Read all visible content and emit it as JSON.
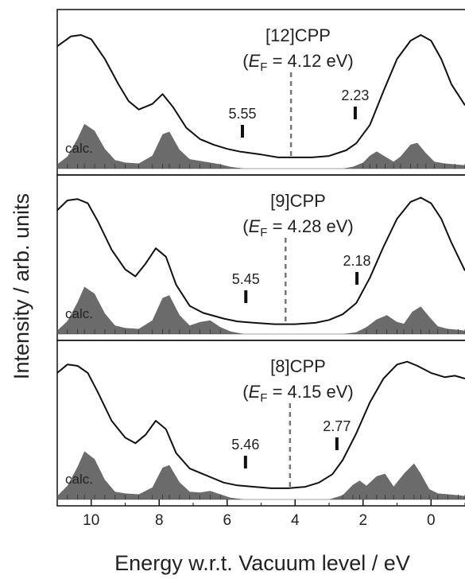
{
  "chart_data": {
    "type": "line",
    "xlabel": "Energy w.r.t. Vacuum level / eV",
    "ylabel": "Intensity / arb. units",
    "xlim": [
      11,
      -1
    ],
    "ylim": [
      0,
      1
    ],
    "x_ticks": [
      10,
      8,
      6,
      4,
      2,
      0
    ],
    "x_tick_labels": [
      "10",
      "8",
      "6",
      "4",
      "2",
      "0"
    ],
    "colors": {
      "measured": "#111111",
      "calc_fill": "#6b6b6b",
      "fermi": "#777777",
      "stick": "#333333"
    },
    "panels": [
      {
        "title": "[12]CPP",
        "ef_prefix": "(",
        "ef_symbol": "E",
        "ef_sub": "F",
        "ef_value": " = 4.12 eV)",
        "fermi_level": 4.12,
        "calc_label": "calc.",
        "markers": [
          {
            "x": 5.55,
            "label": "5.55"
          },
          {
            "x": 2.23,
            "label": "2.23"
          }
        ],
        "series": [
          {
            "kind": "measured",
            "x": [
              11,
              10.6,
              10.3,
              10,
              9.6,
              9.2,
              8.9,
              8.6,
              8.2,
              7.9,
              7.6,
              7.2,
              6.8,
              6.4,
              6.0,
              5.6,
              5.0,
              4.5,
              4.0,
              3.5,
              3.0,
              2.5,
              2.2,
              1.8,
              1.4,
              1.0,
              0.6,
              0.3,
              0.0,
              -0.3,
              -0.6,
              -1
            ],
            "y": [
              0.87,
              0.94,
              0.95,
              0.92,
              0.78,
              0.6,
              0.48,
              0.42,
              0.46,
              0.53,
              0.44,
              0.29,
              0.21,
              0.17,
              0.14,
              0.12,
              0.1,
              0.08,
              0.08,
              0.08,
              0.09,
              0.13,
              0.18,
              0.31,
              0.55,
              0.78,
              0.91,
              0.95,
              0.91,
              0.78,
              0.6,
              0.45
            ]
          },
          {
            "kind": "calc",
            "x": [
              11,
              10.7,
              10.4,
              10.2,
              9.9,
              9.6,
              9.3,
              9.0,
              8.6,
              8.2,
              7.9,
              7.7,
              7.4,
              7.1,
              6.8,
              6.5,
              6.2,
              5.9,
              5.5,
              2.6,
              2.3,
              2.0,
              1.8,
              1.6,
              1.35,
              1.1,
              0.9,
              0.6,
              0.4,
              0.15,
              -0.1,
              -0.4,
              -0.7,
              -1
            ],
            "y": [
              0.05,
              0.14,
              0.35,
              0.52,
              0.44,
              0.23,
              0.1,
              0.07,
              0.06,
              0.15,
              0.4,
              0.43,
              0.22,
              0.11,
              0.09,
              0.07,
              0.05,
              0.02,
              0,
              0,
              0.02,
              0.07,
              0.15,
              0.2,
              0.14,
              0.08,
              0.14,
              0.28,
              0.3,
              0.18,
              0.08,
              0.06,
              0.05,
              0.04
            ]
          }
        ]
      },
      {
        "title": "[9]CPP",
        "ef_prefix": "(",
        "ef_symbol": "E",
        "ef_sub": "F",
        "ef_value": " = 4.28 eV)",
        "fermi_level": 4.28,
        "calc_label": "calc.",
        "markers": [
          {
            "x": 5.45,
            "label": "5.45"
          },
          {
            "x": 2.18,
            "label": "2.18"
          }
        ],
        "series": [
          {
            "kind": "measured",
            "x": [
              11,
              10.7,
              10.4,
              10.1,
              9.8,
              9.4,
              9.0,
              8.7,
              8.4,
              8.1,
              7.8,
              7.5,
              7.1,
              6.7,
              6.4,
              6.1,
              5.7,
              5.2,
              4.6,
              4.0,
              3.4,
              3.0,
              2.6,
              2.2,
              1.8,
              1.4,
              1.0,
              0.6,
              0.3,
              0.0,
              -0.3,
              -0.6,
              -1
            ],
            "y": [
              0.88,
              0.95,
              0.96,
              0.93,
              0.8,
              0.6,
              0.46,
              0.41,
              0.5,
              0.61,
              0.55,
              0.35,
              0.2,
              0.15,
              0.13,
              0.11,
              0.09,
              0.08,
              0.07,
              0.07,
              0.08,
              0.1,
              0.14,
              0.22,
              0.4,
              0.62,
              0.82,
              0.94,
              0.97,
              0.93,
              0.82,
              0.65,
              0.45
            ]
          },
          {
            "kind": "calc",
            "x": [
              11,
              10.7,
              10.4,
              10.2,
              9.9,
              9.6,
              9.3,
              9.0,
              8.6,
              8.2,
              7.9,
              7.7,
              7.4,
              7.1,
              6.8,
              6.5,
              6.2,
              5.9,
              5.5,
              2.6,
              2.2,
              1.9,
              1.6,
              1.3,
              1.0,
              0.8,
              0.55,
              0.3,
              0.05,
              -0.2,
              -0.5,
              -0.8,
              -1
            ],
            "y": [
              0.04,
              0.15,
              0.37,
              0.55,
              0.47,
              0.24,
              0.1,
              0.07,
              0.06,
              0.16,
              0.42,
              0.45,
              0.22,
              0.1,
              0.14,
              0.16,
              0.08,
              0.03,
              0,
              0,
              0.02,
              0.08,
              0.17,
              0.22,
              0.14,
              0.12,
              0.26,
              0.32,
              0.2,
              0.09,
              0.06,
              0.05,
              0.04
            ]
          }
        ]
      },
      {
        "title": "[8]CPP",
        "ef_prefix": "(",
        "ef_symbol": "E",
        "ef_sub": "F",
        "ef_value": " = 4.15 eV)",
        "fermi_level": 4.15,
        "calc_label": "calc.",
        "markers": [
          {
            "x": 5.46,
            "label": "5.46"
          },
          {
            "x": 2.77,
            "label": "2.77"
          }
        ],
        "series": [
          {
            "kind": "measured",
            "x": [
              11,
              10.7,
              10.4,
              10.1,
              9.8,
              9.4,
              9.0,
              8.7,
              8.4,
              8.1,
              7.8,
              7.5,
              7.1,
              6.7,
              6.4,
              6.1,
              5.7,
              5.2,
              4.7,
              4.2,
              3.7,
              3.3,
              2.9,
              2.6,
              2.2,
              1.8,
              1.4,
              1.0,
              0.7,
              0.4,
              0.0,
              -0.4,
              -0.7,
              -1
            ],
            "y": [
              0.9,
              0.96,
              0.95,
              0.9,
              0.76,
              0.56,
              0.44,
              0.4,
              0.46,
              0.56,
              0.5,
              0.33,
              0.22,
              0.18,
              0.15,
              0.12,
              0.1,
              0.09,
              0.08,
              0.08,
              0.09,
              0.12,
              0.18,
              0.28,
              0.47,
              0.69,
              0.86,
              0.96,
              0.98,
              0.95,
              0.9,
              0.87,
              0.88,
              0.86
            ]
          },
          {
            "kind": "calc",
            "x": [
              11,
              10.7,
              10.4,
              10.2,
              9.9,
              9.6,
              9.3,
              9.0,
              8.6,
              8.2,
              7.9,
              7.7,
              7.4,
              7.1,
              6.8,
              6.5,
              6.2,
              5.9,
              5.5,
              3.0,
              2.6,
              2.3,
              2.1,
              1.9,
              1.6,
              1.35,
              1.1,
              0.8,
              0.5,
              0.3,
              0.05,
              -0.2,
              -0.5,
              -0.8,
              -1
            ],
            "y": [
              0.04,
              0.16,
              0.38,
              0.56,
              0.47,
              0.23,
              0.09,
              0.07,
              0.06,
              0.14,
              0.37,
              0.4,
              0.2,
              0.09,
              0.08,
              0.1,
              0.06,
              0.02,
              0,
              0,
              0.05,
              0.17,
              0.22,
              0.16,
              0.27,
              0.3,
              0.15,
              0.3,
              0.42,
              0.3,
              0.12,
              0.07,
              0.06,
              0.05,
              0.04
            ]
          }
        ]
      }
    ]
  }
}
